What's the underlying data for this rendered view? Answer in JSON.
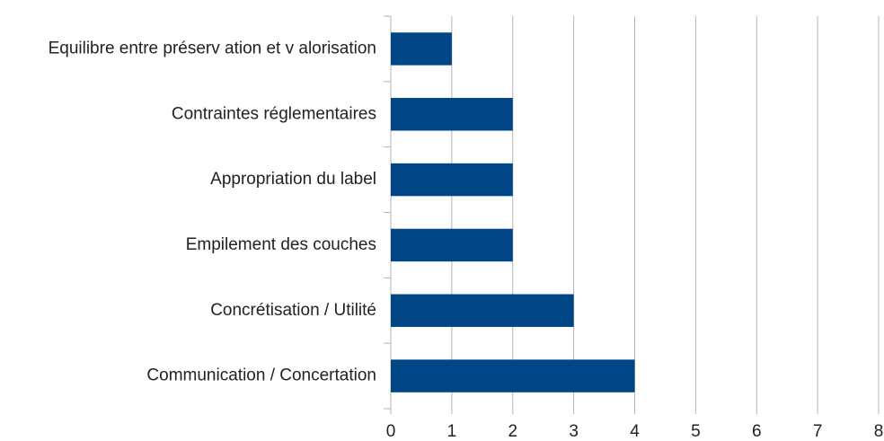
{
  "chart_data": {
    "type": "bar",
    "orientation": "horizontal",
    "categories": [
      "Equilibre entre préserv ation et v alorisation",
      "Contraintes réglementaires",
      "Appropriation du label",
      "Empilement des couches",
      "Concrétisation / Utilité",
      "Communication / Concertation"
    ],
    "values": [
      1,
      2,
      2,
      2,
      3,
      4
    ],
    "color": "#004586",
    "xlim": [
      0,
      8
    ],
    "xticks": [
      0,
      1,
      2,
      3,
      4,
      5,
      6,
      7,
      8
    ],
    "grid": true
  }
}
